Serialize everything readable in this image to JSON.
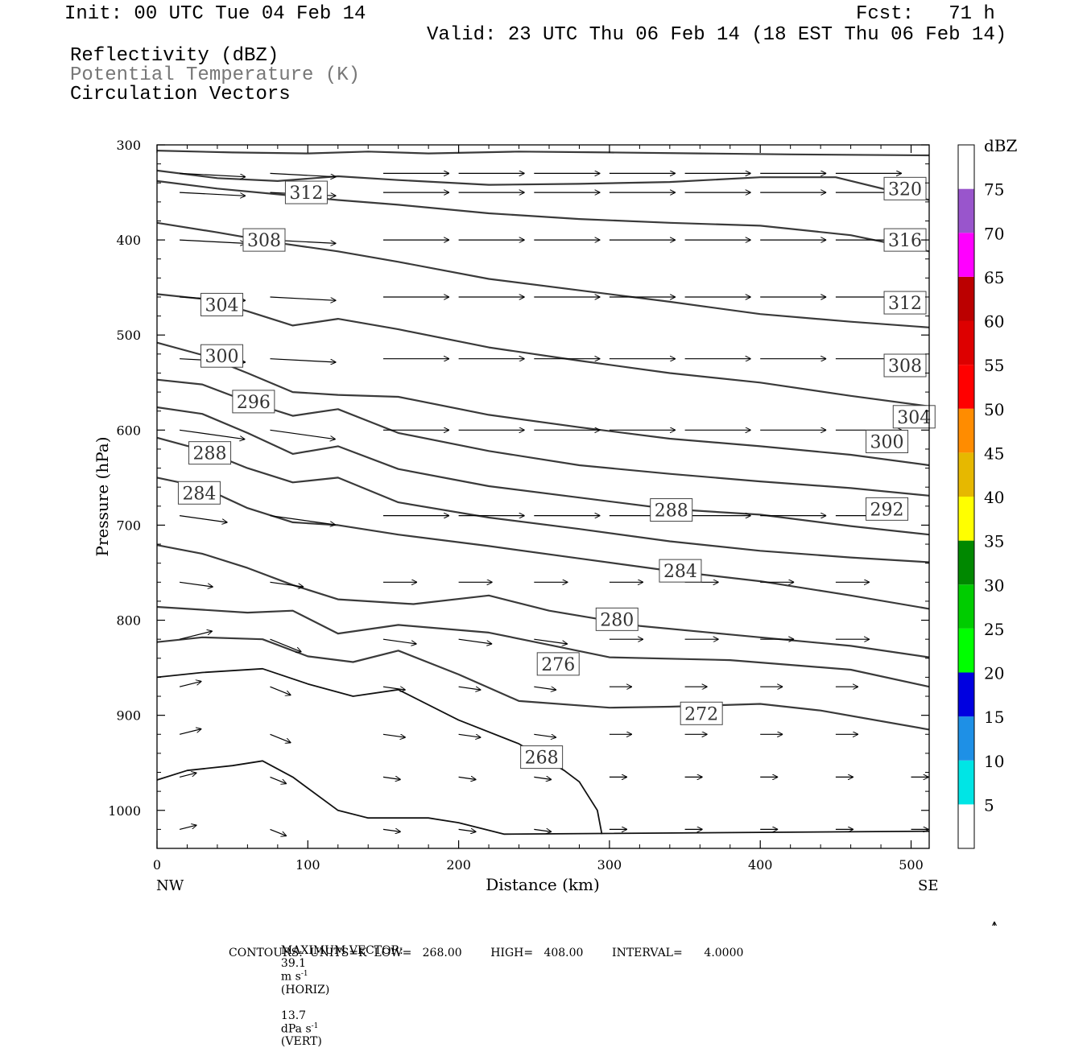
{
  "header": {
    "init": "Init: 00 UTC Tue 04 Feb 14",
    "fcst": "Fcst:   71 h",
    "valid": "Valid: 23 UTC Thu 06 Feb 14 (18 EST Thu 06 Feb 14)",
    "fields": [
      "Reflectivity (dBZ)",
      "Potential Temperature (K)",
      "Circulation Vectors"
    ]
  },
  "chart_data": {
    "type": "line",
    "title": "",
    "xlabel": "Distance (km)",
    "ylabel": "Pressure (hPa)",
    "xlim": [
      0,
      512
    ],
    "ylim": [
      1040,
      300
    ],
    "x_ticks": [
      0,
      100,
      200,
      300,
      400,
      500
    ],
    "y_ticks": [
      300,
      400,
      500,
      600,
      700,
      800,
      900,
      1000
    ],
    "x_end_labels": {
      "left": "NW",
      "right": "SE"
    },
    "colorbar": {
      "unit": "dBZ",
      "labels": [
        5,
        10,
        15,
        20,
        25,
        30,
        35,
        40,
        45,
        50,
        55,
        60,
        65,
        70,
        75
      ],
      "colors": [
        "#ffffff",
        "#00e5e5",
        "#1e90e6",
        "#0000e0",
        "#00ff00",
        "#00cc00",
        "#008800",
        "#ffff00",
        "#e6b800",
        "#ff8c00",
        "#ff0000",
        "#dd0000",
        "#bb0000",
        "#ff00ff",
        "#9955cc",
        "#ffffff"
      ]
    },
    "contour_labels": [
      {
        "label": "320",
        "x": 496,
        "p": 346
      },
      {
        "label": "316",
        "x": 496,
        "p": 400
      },
      {
        "label": "312",
        "x": 99,
        "p": 350
      },
      {
        "label": "312",
        "x": 496,
        "p": 466
      },
      {
        "label": "308",
        "x": 71,
        "p": 400
      },
      {
        "label": "308",
        "x": 496,
        "p": 532
      },
      {
        "label": "304",
        "x": 43,
        "p": 468
      },
      {
        "label": "304",
        "x": 502,
        "p": 586
      },
      {
        "label": "300",
        "x": 43,
        "p": 522
      },
      {
        "label": "300",
        "x": 484,
        "p": 612
      },
      {
        "label": "296",
        "x": 64,
        "p": 570
      },
      {
        "label": "292",
        "x": 484,
        "p": 683
      },
      {
        "label": "288",
        "x": 35,
        "p": 624
      },
      {
        "label": "288",
        "x": 341,
        "p": 684
      },
      {
        "label": "284",
        "x": 28,
        "p": 666
      },
      {
        "label": "284",
        "x": 347,
        "p": 748
      },
      {
        "label": "280",
        "x": 305,
        "p": 799
      },
      {
        "label": "276",
        "x": 266,
        "p": 846
      },
      {
        "label": "272",
        "x": 361,
        "p": 898
      },
      {
        "label": "268",
        "x": 255,
        "p": 944
      }
    ],
    "series": [
      {
        "values": [
          [
            0,
            306
          ],
          [
            50,
            308
          ],
          [
            100,
            309
          ],
          [
            140,
            307
          ],
          [
            180,
            309
          ],
          [
            240,
            307
          ],
          [
            300,
            308
          ],
          [
            360,
            309
          ],
          [
            420,
            310
          ],
          [
            512,
            311
          ]
        ]
      },
      {
        "values": [
          [
            0,
            327
          ],
          [
            40,
            335
          ],
          [
            80,
            338
          ],
          [
            120,
            333
          ],
          [
            160,
            337
          ],
          [
            220,
            342
          ],
          [
            280,
            341
          ],
          [
            340,
            339
          ],
          [
            400,
            334
          ],
          [
            450,
            334
          ],
          [
            512,
            358
          ]
        ]
      },
      {
        "values": [
          [
            0,
            338
          ],
          [
            40,
            346
          ],
          [
            80,
            352
          ],
          [
            120,
            358
          ],
          [
            160,
            363
          ],
          [
            220,
            372
          ],
          [
            280,
            378
          ],
          [
            340,
            382
          ],
          [
            400,
            385
          ],
          [
            460,
            395
          ],
          [
            512,
            412
          ]
        ]
      },
      {
        "values": [
          [
            0,
            382
          ],
          [
            40,
            392
          ],
          [
            80,
            403
          ],
          [
            120,
            412
          ],
          [
            160,
            423
          ],
          [
            220,
            441
          ],
          [
            280,
            453
          ],
          [
            340,
            465
          ],
          [
            400,
            478
          ],
          [
            460,
            486
          ],
          [
            512,
            492
          ]
        ]
      },
      {
        "values": [
          [
            0,
            457
          ],
          [
            30,
            462
          ],
          [
            60,
            475
          ],
          [
            90,
            490
          ],
          [
            120,
            483
          ],
          [
            160,
            494
          ],
          [
            220,
            513
          ],
          [
            280,
            527
          ],
          [
            340,
            540
          ],
          [
            400,
            550
          ],
          [
            460,
            564
          ],
          [
            512,
            575
          ]
        ]
      },
      {
        "values": [
          [
            0,
            508
          ],
          [
            30,
            521
          ],
          [
            60,
            540
          ],
          [
            90,
            560
          ],
          [
            120,
            563
          ],
          [
            160,
            565
          ],
          [
            220,
            584
          ],
          [
            280,
            597
          ],
          [
            340,
            609
          ],
          [
            400,
            617
          ],
          [
            460,
            626
          ],
          [
            512,
            637
          ]
        ]
      },
      {
        "values": [
          [
            0,
            547
          ],
          [
            30,
            552
          ],
          [
            60,
            570
          ],
          [
            90,
            585
          ],
          [
            120,
            578
          ],
          [
            160,
            603
          ],
          [
            220,
            622
          ],
          [
            280,
            637
          ],
          [
            340,
            646
          ],
          [
            400,
            654
          ],
          [
            460,
            661
          ],
          [
            512,
            669
          ]
        ]
      },
      {
        "values": [
          [
            0,
            576
          ],
          [
            30,
            583
          ],
          [
            60,
            603
          ],
          [
            90,
            625
          ],
          [
            120,
            617
          ],
          [
            160,
            641
          ],
          [
            220,
            659
          ],
          [
            280,
            671
          ],
          [
            340,
            683
          ],
          [
            400,
            689
          ],
          [
            460,
            701
          ],
          [
            512,
            710
          ]
        ]
      },
      {
        "values": [
          [
            0,
            608
          ],
          [
            30,
            621
          ],
          [
            60,
            640
          ],
          [
            90,
            655
          ],
          [
            120,
            650
          ],
          [
            160,
            676
          ],
          [
            220,
            692
          ],
          [
            280,
            704
          ],
          [
            340,
            717
          ],
          [
            400,
            727
          ],
          [
            460,
            734
          ],
          [
            512,
            739
          ]
        ]
      },
      {
        "values": [
          [
            0,
            650
          ],
          [
            30,
            660
          ],
          [
            60,
            682
          ],
          [
            90,
            697
          ],
          [
            120,
            700
          ],
          [
            160,
            710
          ],
          [
            220,
            722
          ],
          [
            280,
            735
          ],
          [
            340,
            748
          ],
          [
            400,
            759
          ],
          [
            460,
            774
          ],
          [
            512,
            788
          ]
        ]
      },
      {
        "values": [
          [
            0,
            721
          ],
          [
            30,
            730
          ],
          [
            60,
            745
          ],
          [
            90,
            763
          ],
          [
            120,
            778
          ],
          [
            170,
            783
          ],
          [
            220,
            774
          ],
          [
            260,
            790
          ],
          [
            320,
            806
          ],
          [
            380,
            815
          ],
          [
            460,
            827
          ],
          [
            512,
            839
          ]
        ]
      },
      {
        "values": [
          [
            0,
            786
          ],
          [
            30,
            789
          ],
          [
            60,
            792
          ],
          [
            90,
            790
          ],
          [
            120,
            814
          ],
          [
            160,
            805
          ],
          [
            220,
            813
          ],
          [
            260,
            826
          ],
          [
            300,
            839
          ],
          [
            380,
            842
          ],
          [
            460,
            852
          ],
          [
            512,
            870
          ]
        ]
      },
      {
        "values": [
          [
            0,
            823
          ],
          [
            30,
            818
          ],
          [
            70,
            820
          ],
          [
            100,
            838
          ],
          [
            130,
            844
          ],
          [
            160,
            832
          ],
          [
            200,
            857
          ],
          [
            240,
            885
          ],
          [
            300,
            892
          ],
          [
            340,
            891
          ],
          [
            400,
            888
          ],
          [
            440,
            895
          ],
          [
            512,
            915
          ]
        ]
      },
      {
        "values": [
          [
            0,
            860
          ],
          [
            30,
            855
          ],
          [
            70,
            851
          ],
          [
            100,
            867
          ],
          [
            130,
            880
          ],
          [
            160,
            873
          ],
          [
            200,
            905
          ],
          [
            240,
            930
          ],
          [
            270,
            958
          ],
          [
            280,
            970
          ],
          [
            292,
            1000
          ],
          [
            295,
            1025
          ]
        ]
      },
      {
        "values": [
          [
            0,
            968
          ],
          [
            20,
            958
          ],
          [
            50,
            953
          ],
          [
            70,
            948
          ],
          [
            90,
            965
          ],
          [
            120,
            1000
          ],
          [
            140,
            1008
          ],
          [
            160,
            1008
          ],
          [
            180,
            1008
          ],
          [
            200,
            1013
          ],
          [
            230,
            1025
          ],
          [
            512,
            1022
          ]
        ]
      }
    ]
  },
  "footer": {
    "max_vector_label": "MAXIMUM VECTOR:",
    "horiz_value": "39.1",
    "horiz_unit": "m s",
    "horiz_exp": "-1",
    "horiz_tag": "(HORIZ)",
    "vert_value": "13.7",
    "vert_unit": "dPa s",
    "vert_exp": "-1",
    "vert_tag": "(VERT)",
    "contours_line": "CONTOURS:  UNITS=K  LOW=   268.00        HIGH=   408.00        INTERVAL=      4.0000"
  }
}
